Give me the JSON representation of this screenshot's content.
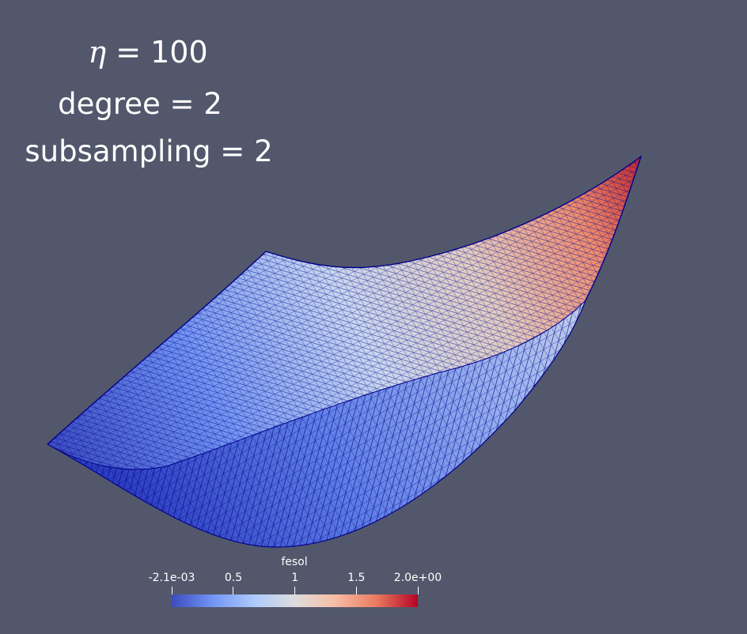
{
  "annotations": {
    "eta_symbol": "η",
    "eta_rest": " = 100",
    "degree": "degree = 2",
    "subsampling": "subsampling = 2"
  },
  "colorbar": {
    "title": "fesol",
    "ticks": [
      {
        "label": "-2.1e-03",
        "value": -0.0021
      },
      {
        "label": "0.5",
        "value": 0.5
      },
      {
        "label": "1",
        "value": 1.0
      },
      {
        "label": "1.5",
        "value": 1.5
      },
      {
        "label": "2.0e+00",
        "value": 2.0
      }
    ],
    "range": [
      -0.0021,
      2.0
    ],
    "colors": [
      "#3b4cc0",
      "#7396f5",
      "#b0cbfc",
      "#dddcdc",
      "#f6bfa6",
      "#ea7b60",
      "#b40426"
    ]
  },
  "colors": {
    "background": "#52576b",
    "mesh_edges": "#00008b"
  }
}
